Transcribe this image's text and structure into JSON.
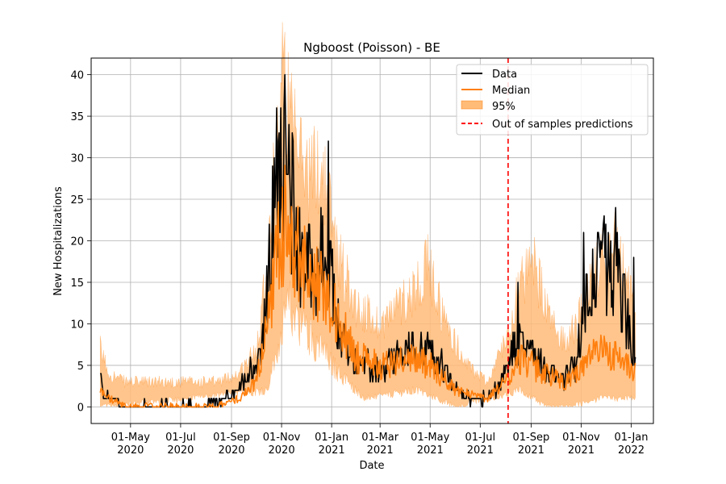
{
  "chart_data": {
    "type": "line",
    "title": "Ngboost (Poisson) - BE",
    "xlabel": "Date",
    "ylabel": "New Hospitalizations",
    "xlim": [
      "2020-03-14",
      "2022-01-28"
    ],
    "ylim": [
      -2,
      42
    ],
    "grid": true,
    "legend_position": "top-right",
    "x_ticks": [
      {
        "date": "2020-05-01",
        "label": [
          "01-May",
          "2020"
        ]
      },
      {
        "date": "2020-07-01",
        "label": [
          "01-Jul",
          "2020"
        ]
      },
      {
        "date": "2020-09-01",
        "label": [
          "01-Sep",
          "2020"
        ]
      },
      {
        "date": "2020-11-01",
        "label": [
          "01-Nov",
          "2020"
        ]
      },
      {
        "date": "2021-01-01",
        "label": [
          "01-Jan",
          "2021"
        ]
      },
      {
        "date": "2021-03-01",
        "label": [
          "01-Mar",
          "2021"
        ]
      },
      {
        "date": "2021-05-01",
        "label": [
          "01-May",
          "2021"
        ]
      },
      {
        "date": "2021-07-01",
        "label": [
          "01-Jul",
          "2021"
        ]
      },
      {
        "date": "2021-09-01",
        "label": [
          "01-Sep",
          "2021"
        ]
      },
      {
        "date": "2021-11-01",
        "label": [
          "01-Nov",
          "2021"
        ]
      },
      {
        "date": "2022-01-01",
        "label": [
          "01-Jan",
          "2022"
        ]
      }
    ],
    "y_ticks": [
      0,
      5,
      10,
      15,
      20,
      25,
      30,
      35,
      40
    ],
    "date_start": "2020-03-25",
    "series": [
      {
        "name": "Data",
        "color": "#000000",
        "keyframes": [
          [
            "2020-03-25",
            4
          ],
          [
            "2020-03-29",
            1
          ],
          [
            "2020-04-10",
            1
          ],
          [
            "2020-04-25",
            0
          ],
          [
            "2020-06-01",
            0
          ],
          [
            "2020-08-01",
            0
          ],
          [
            "2020-08-25",
            1
          ],
          [
            "2020-09-10",
            2
          ],
          [
            "2020-09-20",
            4
          ],
          [
            "2020-10-01",
            5
          ],
          [
            "2020-10-10",
            9
          ],
          [
            "2020-10-17",
            16
          ],
          [
            "2020-10-22",
            23
          ],
          [
            "2020-10-27",
            28
          ],
          [
            "2020-11-02",
            32
          ],
          [
            "2020-11-08",
            27
          ],
          [
            "2020-11-15",
            24
          ],
          [
            "2020-11-22",
            20
          ],
          [
            "2020-12-01",
            17
          ],
          [
            "2020-12-10",
            16
          ],
          [
            "2020-12-20",
            18
          ],
          [
            "2021-01-01",
            15
          ],
          [
            "2021-01-10",
            9
          ],
          [
            "2021-01-25",
            6
          ],
          [
            "2021-02-10",
            5
          ],
          [
            "2021-03-01",
            4
          ],
          [
            "2021-03-20",
            6
          ],
          [
            "2021-04-10",
            7
          ],
          [
            "2021-04-25",
            7
          ],
          [
            "2021-05-15",
            5
          ],
          [
            "2021-06-01",
            2
          ],
          [
            "2021-06-20",
            1
          ],
          [
            "2021-07-05",
            1
          ],
          [
            "2021-07-20",
            2
          ],
          [
            "2021-08-01",
            4
          ],
          [
            "2021-08-10",
            7
          ],
          [
            "2021-08-25",
            8
          ],
          [
            "2021-09-10",
            6
          ],
          [
            "2021-09-25",
            4
          ],
          [
            "2021-10-10",
            3
          ],
          [
            "2021-10-25",
            5
          ],
          [
            "2021-11-05",
            12
          ],
          [
            "2021-11-12",
            16
          ],
          [
            "2021-11-20",
            15
          ],
          [
            "2021-11-28",
            17
          ],
          [
            "2021-12-05",
            16
          ],
          [
            "2021-12-15",
            16
          ],
          [
            "2021-12-22",
            13
          ],
          [
            "2021-12-30",
            9
          ],
          [
            "2022-01-06",
            5
          ]
        ],
        "peaks": [
          [
            "2020-10-29",
            33
          ],
          [
            "2020-11-04",
            36
          ],
          [
            "2020-12-28",
            32
          ],
          [
            "2021-08-16",
            15
          ],
          [
            "2021-11-04",
            21
          ],
          [
            "2021-11-29",
            23
          ],
          [
            "2021-12-13",
            24
          ],
          [
            "2022-01-04",
            18
          ]
        ]
      },
      {
        "name": "Median",
        "color": "#ff7f0e",
        "keyframes": [
          [
            "2020-03-25",
            2
          ],
          [
            "2020-04-05",
            1
          ],
          [
            "2020-04-25",
            0
          ],
          [
            "2020-08-15",
            0
          ],
          [
            "2020-09-10",
            1
          ],
          [
            "2020-10-01",
            3
          ],
          [
            "2020-10-15",
            10
          ],
          [
            "2020-10-25",
            18
          ],
          [
            "2020-11-05",
            22
          ],
          [
            "2020-11-20",
            19
          ],
          [
            "2020-12-05",
            15
          ],
          [
            "2020-12-25",
            14
          ],
          [
            "2021-01-10",
            10
          ],
          [
            "2021-02-01",
            6
          ],
          [
            "2021-03-01",
            5
          ],
          [
            "2021-04-10",
            6
          ],
          [
            "2021-05-01",
            5
          ],
          [
            "2021-06-01",
            2
          ],
          [
            "2021-07-10",
            1
          ],
          [
            "2021-08-01",
            3
          ],
          [
            "2021-08-20",
            6
          ],
          [
            "2021-09-15",
            4
          ],
          [
            "2021-10-15",
            3
          ],
          [
            "2021-11-05",
            5
          ],
          [
            "2021-11-25",
            7
          ],
          [
            "2021-12-15",
            6
          ],
          [
            "2022-01-06",
            4
          ]
        ]
      },
      {
        "name": "95%",
        "color": "#ffbb78",
        "lower_keyframes": [
          [
            "2020-03-25",
            0
          ],
          [
            "2020-10-15",
            2
          ],
          [
            "2020-10-25",
            6
          ],
          [
            "2020-11-10",
            12
          ],
          [
            "2020-12-10",
            8
          ],
          [
            "2021-01-10",
            4
          ],
          [
            "2021-02-10",
            1
          ],
          [
            "2021-04-15",
            2
          ],
          [
            "2021-06-01",
            0
          ],
          [
            "2021-08-20",
            2
          ],
          [
            "2021-09-20",
            0
          ],
          [
            "2021-10-20",
            0
          ],
          [
            "2021-11-25",
            1
          ],
          [
            "2022-01-06",
            1
          ]
        ],
        "upper_keyframes": [
          [
            "2020-03-25",
            7
          ],
          [
            "2020-04-05",
            4
          ],
          [
            "2020-04-25",
            3
          ],
          [
            "2020-08-15",
            3
          ],
          [
            "2020-09-10",
            4
          ],
          [
            "2020-10-01",
            7
          ],
          [
            "2020-10-15",
            18
          ],
          [
            "2020-10-25",
            30
          ],
          [
            "2020-11-02",
            40
          ],
          [
            "2020-11-15",
            32
          ],
          [
            "2020-12-05",
            28
          ],
          [
            "2020-12-20",
            29
          ],
          [
            "2021-01-10",
            18
          ],
          [
            "2021-02-01",
            12
          ],
          [
            "2021-03-01",
            10
          ],
          [
            "2021-04-10",
            14
          ],
          [
            "2021-04-28",
            17
          ],
          [
            "2021-05-20",
            10
          ],
          [
            "2021-06-15",
            5
          ],
          [
            "2021-07-10",
            3
          ],
          [
            "2021-08-01",
            8
          ],
          [
            "2021-08-15",
            14
          ],
          [
            "2021-09-05",
            17
          ],
          [
            "2021-09-25",
            10
          ],
          [
            "2021-10-15",
            8
          ],
          [
            "2021-11-05",
            12
          ],
          [
            "2021-11-25",
            18
          ],
          [
            "2021-12-10",
            21
          ],
          [
            "2021-12-25",
            15
          ],
          [
            "2022-01-06",
            12
          ]
        ]
      },
      {
        "name": "Out of samples predictions",
        "color": "#ff0000",
        "date": "2021-08-04"
      }
    ]
  }
}
